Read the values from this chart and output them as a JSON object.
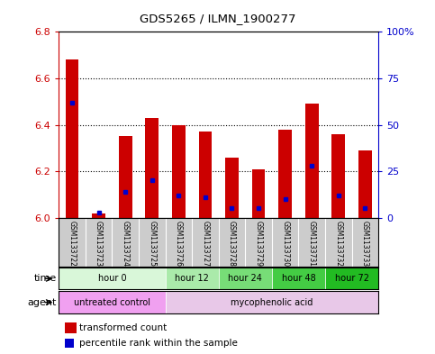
{
  "title": "GDS5265 / ILMN_1900277",
  "samples": [
    "GSM1133722",
    "GSM1133723",
    "GSM1133724",
    "GSM1133725",
    "GSM1133726",
    "GSM1133727",
    "GSM1133728",
    "GSM1133729",
    "GSM1133730",
    "GSM1133731",
    "GSM1133732",
    "GSM1133733"
  ],
  "transformed_count": [
    6.68,
    6.02,
    6.35,
    6.43,
    6.4,
    6.37,
    6.26,
    6.21,
    6.38,
    6.49,
    6.36,
    6.29
  ],
  "percentile_rank": [
    62,
    3,
    14,
    20,
    12,
    11,
    5,
    5,
    10,
    28,
    12,
    5
  ],
  "ymin": 6.0,
  "ymax": 6.8,
  "yticks": [
    6.0,
    6.2,
    6.4,
    6.6,
    6.8
  ],
  "right_yticks": [
    0,
    25,
    50,
    75,
    100
  ],
  "bar_color": "#cc0000",
  "blue_color": "#0000cc",
  "time_groups": [
    {
      "label": "hour 0",
      "start": 0,
      "end": 4,
      "color": "#d9f7d9"
    },
    {
      "label": "hour 12",
      "start": 4,
      "end": 6,
      "color": "#aaeaaa"
    },
    {
      "label": "hour 24",
      "start": 6,
      "end": 8,
      "color": "#77dd77"
    },
    {
      "label": "hour 48",
      "start": 8,
      "end": 10,
      "color": "#44cc44"
    },
    {
      "label": "hour 72",
      "start": 10,
      "end": 12,
      "color": "#22bb22"
    }
  ],
  "agent_groups": [
    {
      "label": "untreated control",
      "start": 0,
      "end": 4,
      "color": "#f0a0f0"
    },
    {
      "label": "mycophenolic acid",
      "start": 4,
      "end": 12,
      "color": "#e8c8e8"
    }
  ],
  "bg_color": "#ffffff",
  "sample_bg": "#cccccc",
  "left_label_color": "#cc0000",
  "right_label_color": "#0000cc",
  "grid_yticks": [
    6.2,
    6.4,
    6.6
  ]
}
